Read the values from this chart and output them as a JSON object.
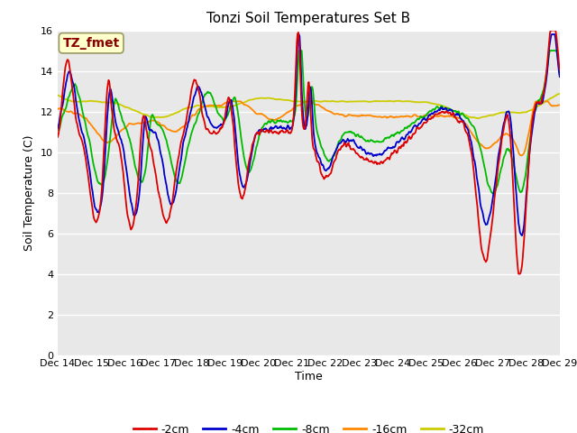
{
  "title": "Tonzi Soil Temperatures Set B",
  "xlabel": "Time",
  "ylabel": "Soil Temperature (C)",
  "annotation_text": "TZ_fmet",
  "annotation_color": "#880000",
  "annotation_bg": "#ffffcc",
  "annotation_border": "#999966",
  "ylim": [
    0,
    16
  ],
  "yticks": [
    0,
    2,
    4,
    6,
    8,
    10,
    12,
    14,
    16
  ],
  "xtick_labels": [
    "Dec 14",
    "Dec 15",
    "Dec 16",
    "Dec 17",
    "Dec 18",
    "Dec 19",
    "Dec 20",
    "Dec 21",
    "Dec 22",
    "Dec 23",
    "Dec 24",
    "Dec 25",
    "Dec 26",
    "Dec 27",
    "Dec 28",
    "Dec 29"
  ],
  "series_colors": [
    "#dd0000",
    "#0000cc",
    "#00bb00",
    "#ff8800",
    "#cccc00"
  ],
  "series_labels": [
    "-2cm",
    "-4cm",
    "-8cm",
    "-16cm",
    "-32cm"
  ],
  "fig_bg_color": "#ffffff",
  "plot_bg_color": "#e8e8e8",
  "grid_color": "#ffffff",
  "linewidth": 1.3
}
